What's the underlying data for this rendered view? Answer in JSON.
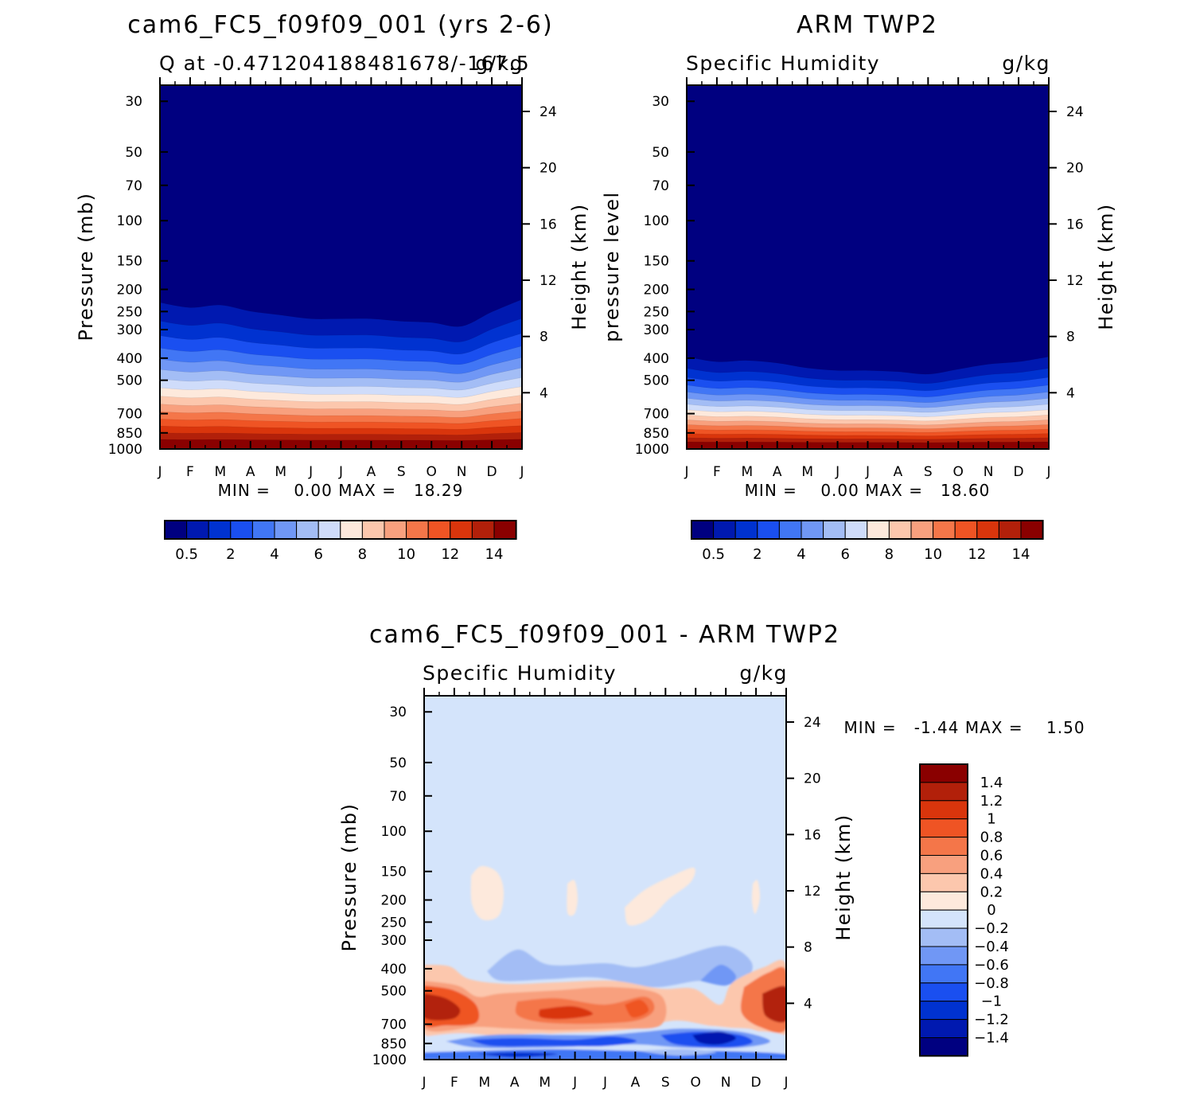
{
  "chart_data": [
    {
      "type": "heatmap",
      "title": "cam6_FC5_f09f09_001 (yrs 2-6)",
      "subtitle_left": "Q at -0.471204188481678/-167.5",
      "subtitle_right": "g/kg",
      "xlabel": "",
      "ylabel": "Pressure (mb)",
      "ylabel_right": "Height (km)",
      "x_ticks": [
        "J",
        "F",
        "M",
        "A",
        "M",
        "J",
        "J",
        "A",
        "S",
        "O",
        "N",
        "D",
        "J"
      ],
      "y_ticks": [
        30,
        50,
        70,
        100,
        150,
        200,
        250,
        300,
        400,
        500,
        700,
        850,
        1000
      ],
      "y2_ticks": [
        4,
        8,
        12,
        16,
        20,
        24
      ],
      "ylim": [
        1000,
        25
      ],
      "log_y": true,
      "min_max": "MIN =    0.00 MAX =   18.29",
      "levels": [
        0.5,
        1,
        2,
        3,
        4,
        5,
        6,
        7,
        8,
        9,
        10,
        11,
        12,
        13,
        14
      ],
      "colorbar_labels": [
        "0.5",
        "2",
        "4",
        "6",
        "8",
        "10",
        "12",
        "14"
      ],
      "colorbar_orientation": "horizontal",
      "dry_top": [
        330,
        338,
        334,
        344,
        350,
        356,
        356,
        356,
        360,
        362,
        368,
        345,
        325
      ],
      "surface_max_approx": 18.29
    },
    {
      "type": "heatmap",
      "title": "ARM TWP2",
      "subtitle_left": "Specific Humidity",
      "subtitle_right": "g/kg",
      "xlabel": "",
      "ylabel": "pressure level",
      "ylabel_right": "Height (km)",
      "x_ticks": [
        "J",
        "F",
        "M",
        "A",
        "M",
        "J",
        "J",
        "A",
        "S",
        "O",
        "N",
        "D",
        "J"
      ],
      "y_ticks": [
        30,
        50,
        70,
        100,
        150,
        200,
        250,
        300,
        400,
        500,
        700,
        850,
        1000
      ],
      "y2_ticks": [
        4,
        8,
        12,
        16,
        20,
        24
      ],
      "ylim": [
        1000,
        25
      ],
      "log_y": true,
      "min_max": "MIN =    0.00 MAX =   18.60",
      "levels": [
        0.5,
        1,
        2,
        3,
        4,
        5,
        6,
        7,
        8,
        9,
        10,
        11,
        12,
        13,
        14
      ],
      "colorbar_labels": [
        "0.5",
        "2",
        "4",
        "6",
        "8",
        "10",
        "12",
        "14"
      ],
      "colorbar_orientation": "horizontal",
      "dry_top": [
        310,
        318,
        316,
        320,
        328,
        332,
        332,
        334,
        338,
        330,
        322,
        318,
        310
      ],
      "surface_max_approx": 18.6
    },
    {
      "type": "heatmap",
      "title": "cam6_FC5_f09f09_001 - ARM TWP2",
      "subtitle_left": "Specific Humidity",
      "subtitle_right": "g/kg",
      "xlabel": "",
      "ylabel": "Pressure (mb)",
      "ylabel_right": "Height (km)",
      "x_ticks": [
        "J",
        "F",
        "M",
        "A",
        "M",
        "J",
        "J",
        "A",
        "S",
        "O",
        "N",
        "D",
        "J"
      ],
      "y_ticks": [
        30,
        50,
        70,
        100,
        150,
        200,
        250,
        300,
        400,
        500,
        700,
        850,
        1000
      ],
      "y2_ticks": [
        4,
        8,
        12,
        16,
        20,
        24
      ],
      "ylim": [
        1000,
        25
      ],
      "log_y": true,
      "min_max": "MIN =   -1.44 MAX =    1.50",
      "levels": [
        -1.4,
        -1.2,
        -1,
        -0.8,
        -0.6,
        -0.4,
        -0.2,
        0,
        0.2,
        0.4,
        0.6,
        0.8,
        1,
        1.2,
        1.4
      ],
      "colorbar_labels": [
        "1.4",
        "1.2",
        "1",
        "0.8",
        "0.6",
        "0.4",
        "0.2",
        "0",
        "−0.2",
        "−0.4",
        "−0.6",
        "−0.8",
        "−1",
        "−1.2",
        "−1.4"
      ],
      "colorbar_orientation": "vertical",
      "background_value_range": [
        -0.2,
        0
      ],
      "features": [
        {
          "desc": "moist anomaly 500-700mb",
          "approx_max": 1.5
        },
        {
          "desc": "dry anomaly 850-1000mb",
          "approx_min": -1.44
        },
        {
          "desc": "small positive patches 150-250mb",
          "approx_value": 0.1
        }
      ]
    }
  ],
  "colors": {
    "positive_palette": [
      "#000080",
      "#0019b0",
      "#0032d0",
      "#1a4ff0",
      "#4176f5",
      "#7097f5",
      "#a3bdf5",
      "#cfdcfa",
      "#fde9dc",
      "#fcc7ad",
      "#f8a07e",
      "#f47649",
      "#ef5424",
      "#d9350c",
      "#b2200a",
      "#8a0000"
    ],
    "diff_palette": [
      "#000080",
      "#0019b0",
      "#0032d0",
      "#1a4ff0",
      "#4176f5",
      "#7097f5",
      "#a3bdf5",
      "#d4e4fb",
      "#fde9dc",
      "#fcc7ad",
      "#f8a07e",
      "#f47649",
      "#ef5424",
      "#d9350c",
      "#b2200a",
      "#8a0000"
    ]
  }
}
